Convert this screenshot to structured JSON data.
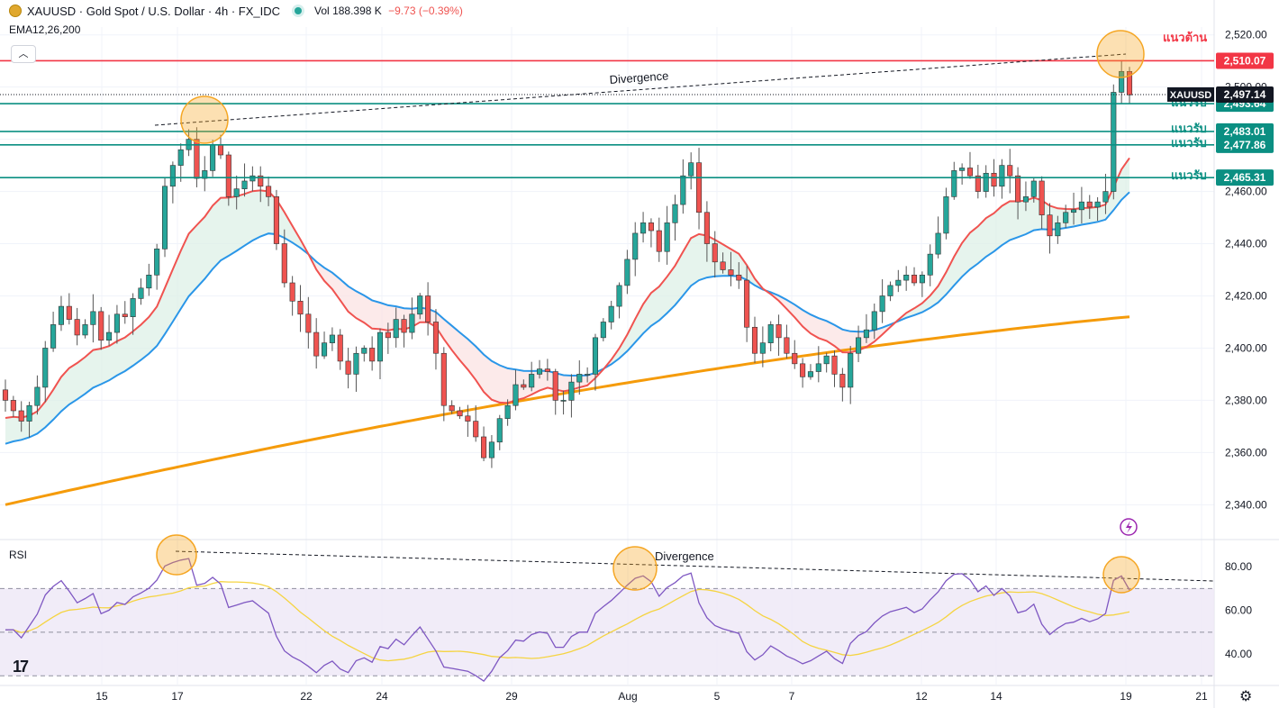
{
  "header": {
    "symbol_title": "XAUUSD · Gold Spot / U.S. Dollar · 4h · FX_IDC",
    "volume_label": "Vol",
    "volume_value": "188.398 K",
    "change": "−9.73 (−0.39%)",
    "indicator_label": "EMA12,26,200"
  },
  "colors": {
    "up": "#26a69a",
    "down": "#ef5350",
    "ema12": "#f05350",
    "ema26": "#2a96e8",
    "ema200": "#f59b0a",
    "resistance": "#f23645",
    "support": "#0b8f82",
    "rsi_line": "#7e57c2",
    "rsi_ma": "#f5d442",
    "rsi_band": "#ede7f6",
    "highlight": "#f5a623"
  },
  "chart_data": [
    {
      "type": "candlestick",
      "symbol": "XAUUSD",
      "timeframe": "4h",
      "price_axis": {
        "ticks": [
          2340,
          2360,
          2380,
          2400,
          2420,
          2440,
          2460,
          2480,
          2500,
          2520
        ],
        "tick_labels": [
          "2,340.00",
          "2,360.00",
          "2,380.00",
          "2,400.00",
          "2,420.00",
          "2,440.00",
          "2,460.00",
          "2,480.00",
          "2,500.00",
          "2,520.00"
        ],
        "range": [
          2327,
          2523
        ]
      },
      "time_axis": {
        "labels": [
          "15",
          "17",
          "22",
          "24",
          "29",
          "Aug",
          "5",
          "7",
          "12",
          "14",
          "19",
          "21"
        ]
      },
      "last_price": {
        "label": "XAUUSD",
        "value": "2,497.14",
        "y": 2497.14
      },
      "levels": [
        {
          "kind": "resistance",
          "label": "แนวต้าน",
          "value": "2,510.07",
          "y": 2510.07
        },
        {
          "kind": "support",
          "label": "แนวรับ",
          "value": "2,493.64",
          "y": 2493.64
        },
        {
          "kind": "support",
          "label": "แนวรับ",
          "value": "2,483.01",
          "y": 2483.01
        },
        {
          "kind": "support",
          "label": "แนวรับ",
          "value": "2,477.86",
          "y": 2477.86
        },
        {
          "kind": "support",
          "label": "แนวรับ",
          "value": "2,465.31",
          "y": 2465.31
        }
      ],
      "annotations": [
        {
          "text": "Divergence"
        }
      ],
      "close_series": [
        2380,
        2376,
        2372,
        2378,
        2385,
        2400,
        2409,
        2416,
        2411,
        2405,
        2409,
        2414,
        2403,
        2406,
        2413,
        2412,
        2419,
        2423,
        2428,
        2438,
        2462,
        2470,
        2476,
        2480,
        2465,
        2468,
        2478,
        2474,
        2458,
        2461,
        2464,
        2466,
        2462,
        2458,
        2440,
        2425,
        2418,
        2413,
        2406,
        2397,
        2402,
        2405,
        2395,
        2390,
        2398,
        2400,
        2395,
        2406,
        2404,
        2411,
        2406,
        2413,
        2420,
        2410,
        2398,
        2378,
        2376,
        2374,
        2372,
        2366,
        2358,
        2364,
        2373,
        2378,
        2386,
        2385,
        2390,
        2392,
        2391,
        2380,
        2380,
        2387,
        2390,
        2390,
        2404,
        2410,
        2416,
        2424,
        2434,
        2444,
        2448,
        2445,
        2437,
        2448,
        2455,
        2466,
        2471,
        2452,
        2440,
        2433,
        2430,
        2428,
        2426,
        2408,
        2398,
        2402,
        2409,
        2404,
        2398,
        2394,
        2389,
        2391,
        2394,
        2397,
        2390,
        2385,
        2398,
        2404,
        2407,
        2414,
        2420,
        2424,
        2426,
        2428,
        2425,
        2428,
        2436,
        2444,
        2458,
        2468,
        2469,
        2466,
        2460,
        2467,
        2462,
        2470,
        2466,
        2456,
        2458,
        2464,
        2451,
        2443,
        2448,
        2452,
        2453,
        2456,
        2454,
        2456,
        2460,
        2498,
        2506,
        2497
      ]
    },
    {
      "type": "line",
      "name": "RSI",
      "axis": {
        "ticks": [
          40,
          60,
          80
        ],
        "tick_labels": [
          "40.00",
          "60.00",
          "80.00"
        ],
        "range": [
          26,
          92
        ]
      },
      "bands": [
        70,
        50,
        30
      ],
      "annotations": [
        {
          "text": "Divergence"
        }
      ]
    }
  ]
}
